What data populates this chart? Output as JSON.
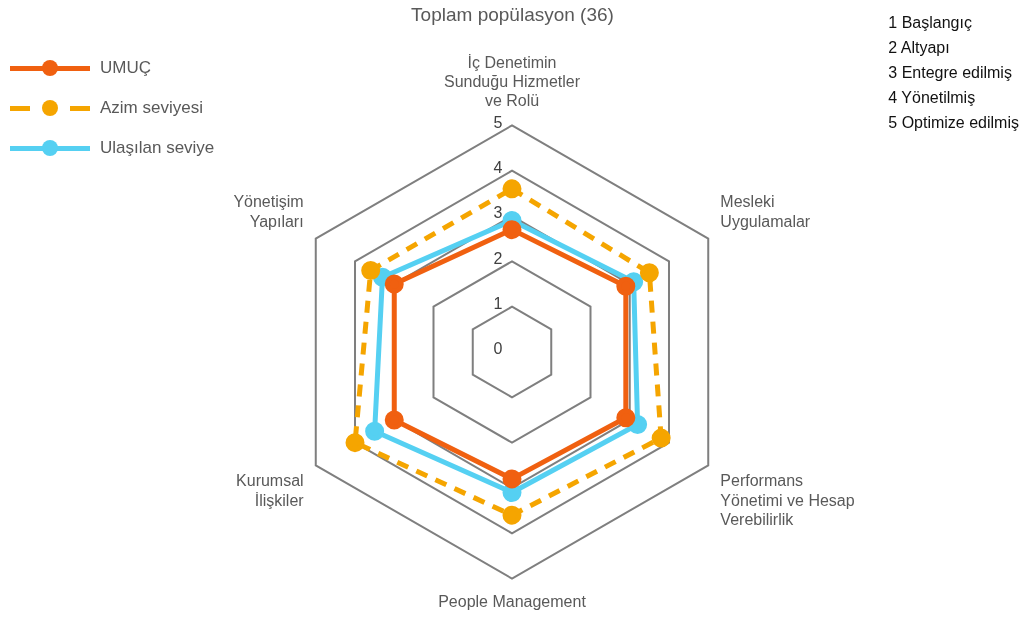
{
  "chart_data": {
    "type": "radar",
    "title": "Toplam popülasyon (36)",
    "categories": [
      "İç Denetimin Sunduğu Hizmetler ve Rolü",
      "Mesleki Uygulamalar",
      "Performans Yönetimi ve Hesap Verebilirlik",
      "People Management",
      "Kurumsal İlişkiler",
      "Yönetişim Yapıları"
    ],
    "series": [
      {
        "name": "UMUÇ",
        "color": "#f06010",
        "values": [
          2.7,
          2.9,
          2.9,
          2.8,
          3.0,
          3.0
        ]
      },
      {
        "name": "Azim seviyesi",
        "color": "#f5a500",
        "line_style": "dashed",
        "values": [
          3.6,
          3.5,
          3.8,
          3.6,
          4.0,
          3.6
        ]
      },
      {
        "name": "Ulaşılan seviye",
        "color": "#55d0f2",
        "values": [
          2.9,
          3.1,
          3.2,
          3.1,
          3.5,
          3.3
        ]
      }
    ],
    "ylim": [
      0,
      5
    ],
    "yticks": [
      0,
      1,
      2,
      3,
      4,
      5
    ],
    "grid": true,
    "marker": "circle",
    "legend": "top left",
    "annotations": [
      "1 Başlangıç",
      "2 Altyapı",
      "3 Entegre edilmiş",
      "4 Yönetilmiş",
      "5 Optimize edilmiş"
    ]
  }
}
